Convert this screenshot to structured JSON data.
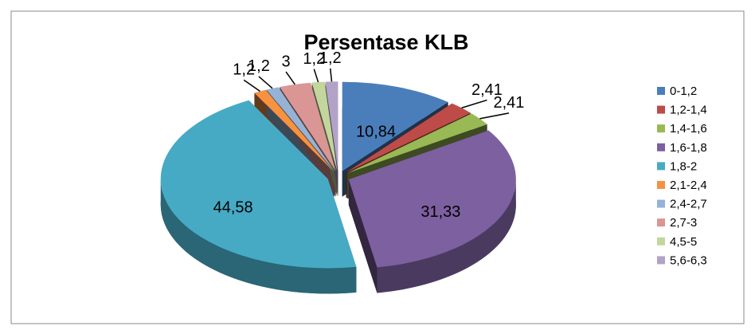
{
  "chart_data": {
    "type": "pie",
    "title": "Persentase KLB",
    "categories": [
      "0-1,2",
      "1,2-1,4",
      "1,4-1,6",
      "1,6-1,8",
      "1,8-2",
      "2,1-2,4",
      "2,4-2,7",
      "2,7-3",
      "4,5-5",
      "5,6-6,3"
    ],
    "values": [
      10.84,
      2.41,
      2.41,
      31.33,
      44.58,
      1.2,
      1.2,
      3,
      1.2,
      1.2
    ],
    "value_labels": [
      "10,84",
      "2,41",
      "2,41",
      "31,33",
      "44,58",
      "1,2",
      "1,2",
      "3",
      "1,2",
      "1,2"
    ],
    "colors": [
      "#4a7ebb",
      "#be4b48",
      "#98b954",
      "#7d60a0",
      "#46aac5",
      "#f69240",
      "#95b3d7",
      "#d99694",
      "#c3d69b",
      "#b3a2c7"
    ],
    "legend": "right"
  }
}
